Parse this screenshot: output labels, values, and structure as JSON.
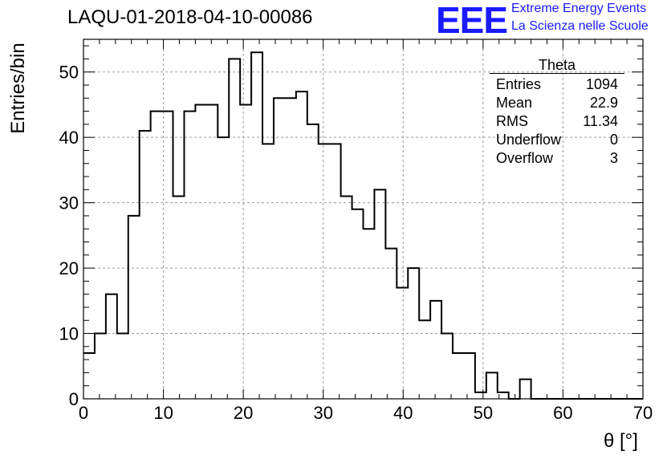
{
  "chart_data": {
    "type": "histogram",
    "title": "LAQU-01-2018-04-10-00086",
    "xlabel": "θ [°]",
    "ylabel": "Entries/bin",
    "xlim": [
      0,
      70
    ],
    "ylim": [
      0,
      55
    ],
    "bin_width": 1.4,
    "grid": true,
    "x_ticks": [
      0,
      10,
      20,
      30,
      40,
      50,
      60,
      70
    ],
    "y_ticks": [
      0,
      10,
      20,
      30,
      40,
      50
    ],
    "values": [
      7,
      10,
      16,
      10,
      28,
      41,
      44,
      44,
      31,
      44,
      45,
      45,
      40,
      52,
      45,
      53,
      39,
      46,
      46,
      47,
      42,
      39,
      39,
      31,
      29,
      26,
      32,
      23,
      17,
      20,
      12,
      15,
      10,
      7,
      7,
      1,
      4,
      1,
      0,
      3,
      0,
      0,
      0,
      0,
      0,
      0,
      0,
      0,
      0,
      0
    ]
  },
  "stats": {
    "title": "Theta",
    "rows": [
      {
        "label": "Entries",
        "value": "1094"
      },
      {
        "label": "Mean",
        "value": "22.9"
      },
      {
        "label": "RMS",
        "value": "11.34"
      },
      {
        "label": "Underflow",
        "value": "0"
      },
      {
        "label": "Overflow",
        "value": "3"
      }
    ]
  },
  "logo": {
    "text": "EEE",
    "line1": "Extreme Energy Events",
    "line2": "La Scienza nelle Scuole"
  },
  "colors": {
    "logo": "#1a1aff",
    "line": "#000000",
    "grid": "#999999"
  }
}
